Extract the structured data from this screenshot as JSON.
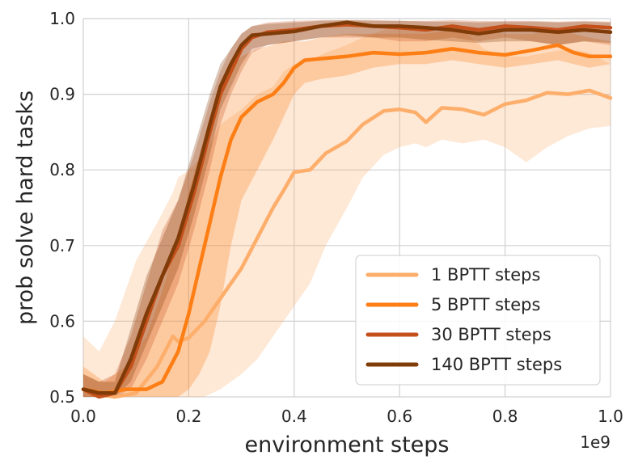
{
  "chart_data": {
    "type": "line",
    "title": "",
    "xlabel": "environment steps",
    "ylabel": "prob solve hard tasks",
    "x_multiplier_label": "1e9",
    "xlim": [
      0.0,
      1.0
    ],
    "ylim": [
      0.5,
      1.0
    ],
    "x_ticks": [
      0.0,
      0.2,
      0.4,
      0.6,
      0.8,
      1.0
    ],
    "x_tick_labels": [
      "0.0",
      "0.2",
      "0.4",
      "0.6",
      "0.8",
      "1.0"
    ],
    "y_ticks": [
      0.5,
      0.6,
      0.7,
      0.8,
      0.9,
      1.0
    ],
    "y_tick_labels": [
      "0.5",
      "0.6",
      "0.7",
      "0.8",
      "0.9",
      "1.0"
    ],
    "grid": true,
    "legend_position": "lower-right",
    "series": [
      {
        "name": "1 BPTT steps",
        "color": "#fdae6b",
        "x": [
          0.0,
          0.03,
          0.06,
          0.1,
          0.14,
          0.17,
          0.18,
          0.2,
          0.23,
          0.26,
          0.3,
          0.33,
          0.36,
          0.38,
          0.4,
          0.43,
          0.46,
          0.5,
          0.53,
          0.57,
          0.6,
          0.63,
          0.65,
          0.68,
          0.72,
          0.76,
          0.8,
          0.84,
          0.88,
          0.92,
          0.96,
          1.0
        ],
        "values": [
          0.51,
          0.503,
          0.5,
          0.505,
          0.54,
          0.58,
          0.573,
          0.578,
          0.6,
          0.63,
          0.67,
          0.71,
          0.75,
          0.773,
          0.797,
          0.8,
          0.822,
          0.838,
          0.86,
          0.878,
          0.88,
          0.876,
          0.863,
          0.882,
          0.88,
          0.873,
          0.887,
          0.892,
          0.902,
          0.9,
          0.905,
          0.895
        ],
        "lower": [
          0.5,
          0.5,
          0.5,
          0.5,
          0.5,
          0.5,
          0.5,
          0.5,
          0.5,
          0.51,
          0.53,
          0.55,
          0.58,
          0.6,
          0.62,
          0.65,
          0.7,
          0.75,
          0.79,
          0.82,
          0.83,
          0.835,
          0.83,
          0.84,
          0.835,
          0.84,
          0.83,
          0.81,
          0.83,
          0.845,
          0.855,
          0.858
        ],
        "upper": [
          0.58,
          0.56,
          0.6,
          0.68,
          0.73,
          0.77,
          0.79,
          0.8,
          0.82,
          0.86,
          0.88,
          0.9,
          0.91,
          0.93,
          0.94,
          0.945,
          0.955,
          0.965,
          0.975,
          0.985,
          0.99,
          0.99,
          0.99,
          0.99,
          0.985,
          0.96,
          0.95,
          0.95,
          0.955,
          0.96,
          0.955,
          0.94
        ]
      },
      {
        "name": "5 BPTT steps",
        "color": "#fd7e14",
        "x": [
          0.0,
          0.04,
          0.08,
          0.12,
          0.15,
          0.18,
          0.2,
          0.22,
          0.24,
          0.26,
          0.28,
          0.3,
          0.33,
          0.36,
          0.38,
          0.4,
          0.42,
          0.45,
          0.5,
          0.55,
          0.6,
          0.65,
          0.7,
          0.75,
          0.8,
          0.85,
          0.9,
          0.93,
          0.96,
          1.0
        ],
        "values": [
          0.51,
          0.505,
          0.51,
          0.51,
          0.52,
          0.56,
          0.61,
          0.67,
          0.73,
          0.79,
          0.84,
          0.87,
          0.89,
          0.9,
          0.915,
          0.935,
          0.945,
          0.947,
          0.95,
          0.955,
          0.953,
          0.955,
          0.96,
          0.955,
          0.952,
          0.958,
          0.965,
          0.955,
          0.95,
          0.95
        ],
        "lower": [
          0.5,
          0.5,
          0.5,
          0.5,
          0.5,
          0.5,
          0.51,
          0.53,
          0.56,
          0.62,
          0.7,
          0.76,
          0.8,
          0.84,
          0.87,
          0.9,
          0.915,
          0.92,
          0.925,
          0.935,
          0.94,
          0.94,
          0.945,
          0.94,
          0.935,
          0.94,
          0.945,
          0.94,
          0.935,
          0.94
        ],
        "upper": [
          0.54,
          0.52,
          0.54,
          0.58,
          0.64,
          0.71,
          0.77,
          0.82,
          0.87,
          0.91,
          0.93,
          0.95,
          0.96,
          0.965,
          0.97,
          0.97,
          0.97,
          0.975,
          0.98,
          0.98,
          0.98,
          0.98,
          0.985,
          0.985,
          0.98,
          0.98,
          0.985,
          0.98,
          0.975,
          0.97
        ]
      },
      {
        "name": "30 BPTT steps",
        "color": "#c4501b",
        "x": [
          0.0,
          0.03,
          0.06,
          0.09,
          0.12,
          0.15,
          0.18,
          0.21,
          0.24,
          0.26,
          0.28,
          0.3,
          0.32,
          0.35,
          0.4,
          0.45,
          0.5,
          0.55,
          0.6,
          0.65,
          0.7,
          0.75,
          0.8,
          0.85,
          0.9,
          0.95,
          1.0
        ],
        "values": [
          0.51,
          0.5,
          0.505,
          0.54,
          0.6,
          0.66,
          0.7,
          0.77,
          0.85,
          0.9,
          0.93,
          0.96,
          0.975,
          0.982,
          0.985,
          0.99,
          0.992,
          0.99,
          0.988,
          0.985,
          0.99,
          0.985,
          0.99,
          0.988,
          0.985,
          0.99,
          0.988
        ],
        "lower": [
          0.5,
          0.5,
          0.5,
          0.51,
          0.55,
          0.6,
          0.65,
          0.72,
          0.8,
          0.86,
          0.9,
          0.93,
          0.955,
          0.965,
          0.97,
          0.975,
          0.975,
          0.975,
          0.97,
          0.97,
          0.975,
          0.97,
          0.975,
          0.97,
          0.965,
          0.97,
          0.965
        ],
        "upper": [
          0.53,
          0.52,
          0.53,
          0.58,
          0.65,
          0.72,
          0.76,
          0.82,
          0.89,
          0.93,
          0.96,
          0.98,
          0.99,
          0.995,
          0.997,
          0.998,
          0.998,
          0.998,
          0.997,
          0.997,
          0.998,
          0.997,
          0.997,
          0.997,
          0.996,
          0.997,
          0.996
        ]
      },
      {
        "name": "140 BPTT steps",
        "color": "#7f3b08",
        "x": [
          0.0,
          0.03,
          0.06,
          0.09,
          0.12,
          0.15,
          0.18,
          0.21,
          0.24,
          0.26,
          0.28,
          0.3,
          0.32,
          0.35,
          0.4,
          0.45,
          0.5,
          0.55,
          0.6,
          0.65,
          0.7,
          0.75,
          0.8,
          0.85,
          0.9,
          0.95,
          1.0
        ],
        "values": [
          0.51,
          0.505,
          0.505,
          0.55,
          0.61,
          0.66,
          0.71,
          0.78,
          0.86,
          0.91,
          0.94,
          0.965,
          0.978,
          0.98,
          0.983,
          0.99,
          0.995,
          0.99,
          0.99,
          0.988,
          0.985,
          0.98,
          0.985,
          0.985,
          0.982,
          0.985,
          0.982
        ],
        "lower": [
          0.5,
          0.5,
          0.5,
          0.52,
          0.57,
          0.62,
          0.67,
          0.74,
          0.82,
          0.88,
          0.91,
          0.94,
          0.96,
          0.965,
          0.97,
          0.975,
          0.978,
          0.975,
          0.975,
          0.972,
          0.97,
          0.968,
          0.97,
          0.97,
          0.965,
          0.97,
          0.968
        ],
        "upper": [
          0.53,
          0.52,
          0.52,
          0.59,
          0.66,
          0.71,
          0.76,
          0.83,
          0.9,
          0.94,
          0.96,
          0.98,
          0.99,
          0.993,
          0.995,
          0.997,
          0.998,
          0.997,
          0.997,
          0.996,
          0.996,
          0.995,
          0.996,
          0.996,
          0.995,
          0.996,
          0.995
        ]
      }
    ]
  }
}
